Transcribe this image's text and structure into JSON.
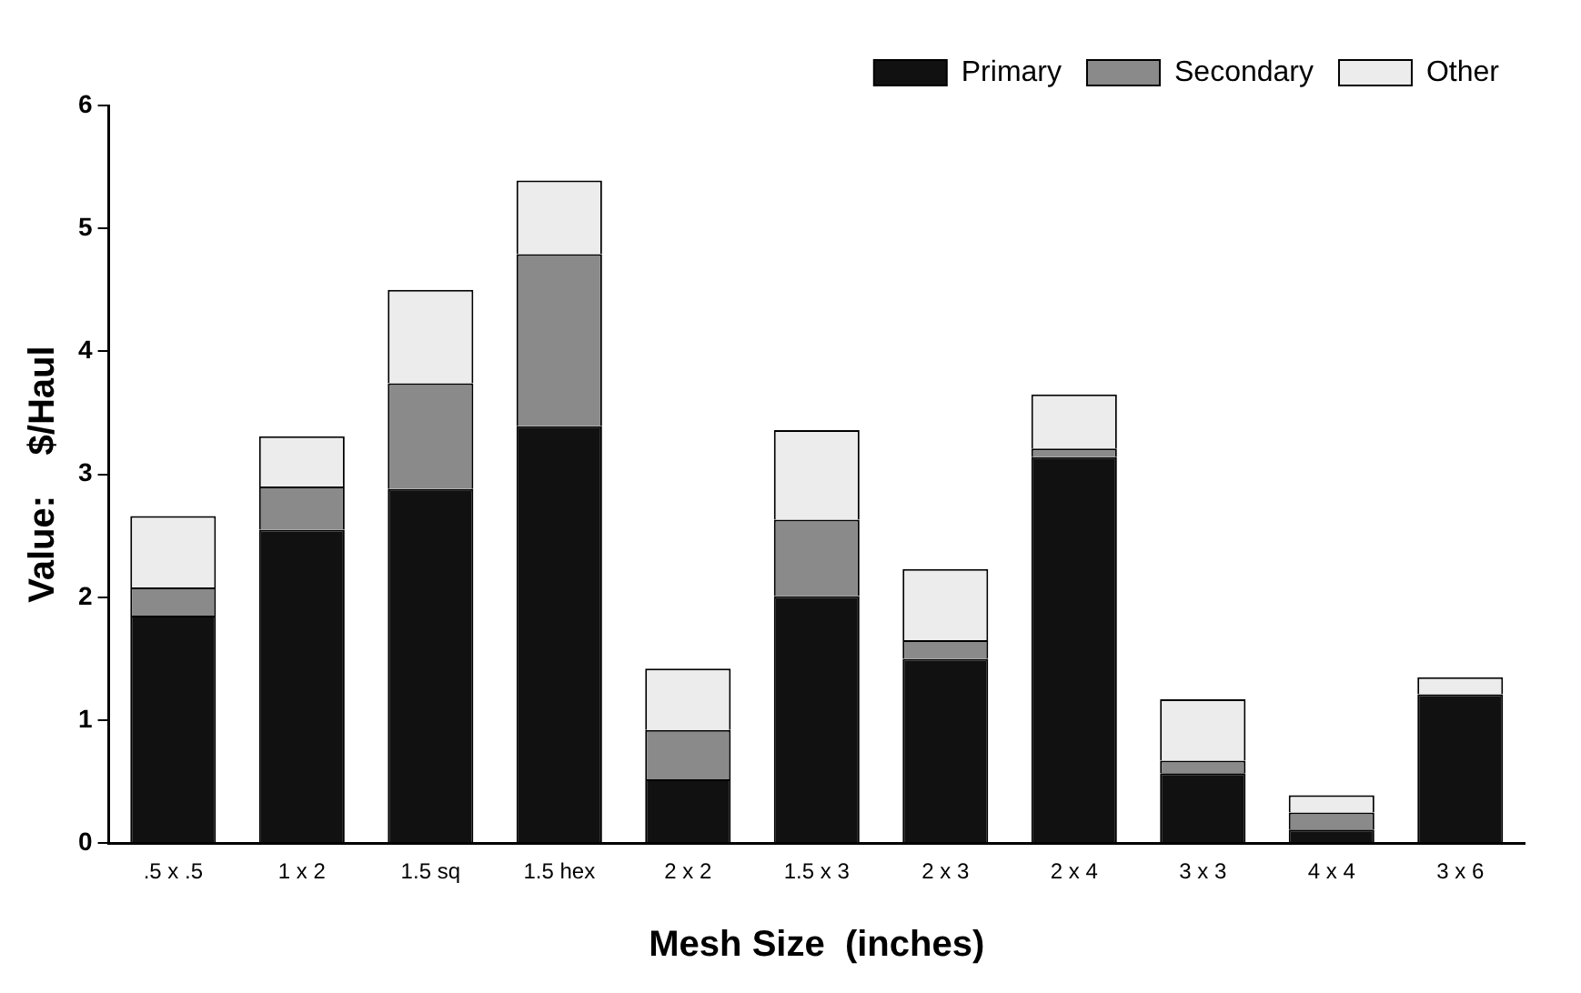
{
  "chart_data": {
    "type": "bar",
    "stacked": true,
    "xlabel": "Mesh Size  (inches)",
    "ylabel": "Value:    $/Haul",
    "categories": [
      ".5 x .5",
      "1 x 2",
      "1.5 sq",
      "1.5 hex",
      "2 x 2",
      "1.5 x 3",
      "2 x 3",
      "2 x 4",
      "3 x 3",
      "4 x 4",
      "3 x 6"
    ],
    "series": [
      {
        "name": "Primary",
        "color": "#111111",
        "values": [
          1.85,
          2.55,
          2.88,
          3.39,
          0.52,
          2.01,
          1.5,
          3.14,
          0.57,
          0.11,
          1.21
        ]
      },
      {
        "name": "Secondary",
        "color": "#8a8a8a",
        "values": [
          0.23,
          0.35,
          0.86,
          1.4,
          0.4,
          0.62,
          0.15,
          0.07,
          0.1,
          0.14,
          0
        ]
      },
      {
        "name": "Other",
        "color": "#ececec",
        "values": [
          0.58,
          0.41,
          0.76,
          0.6,
          0.5,
          0.73,
          0.58,
          0.44,
          0.5,
          0.14,
          0.14
        ]
      }
    ],
    "ylim": [
      0,
      6
    ],
    "yticks": [
      0,
      1,
      2,
      3,
      4,
      5,
      6
    ],
    "grid": false,
    "legend": "top right"
  }
}
